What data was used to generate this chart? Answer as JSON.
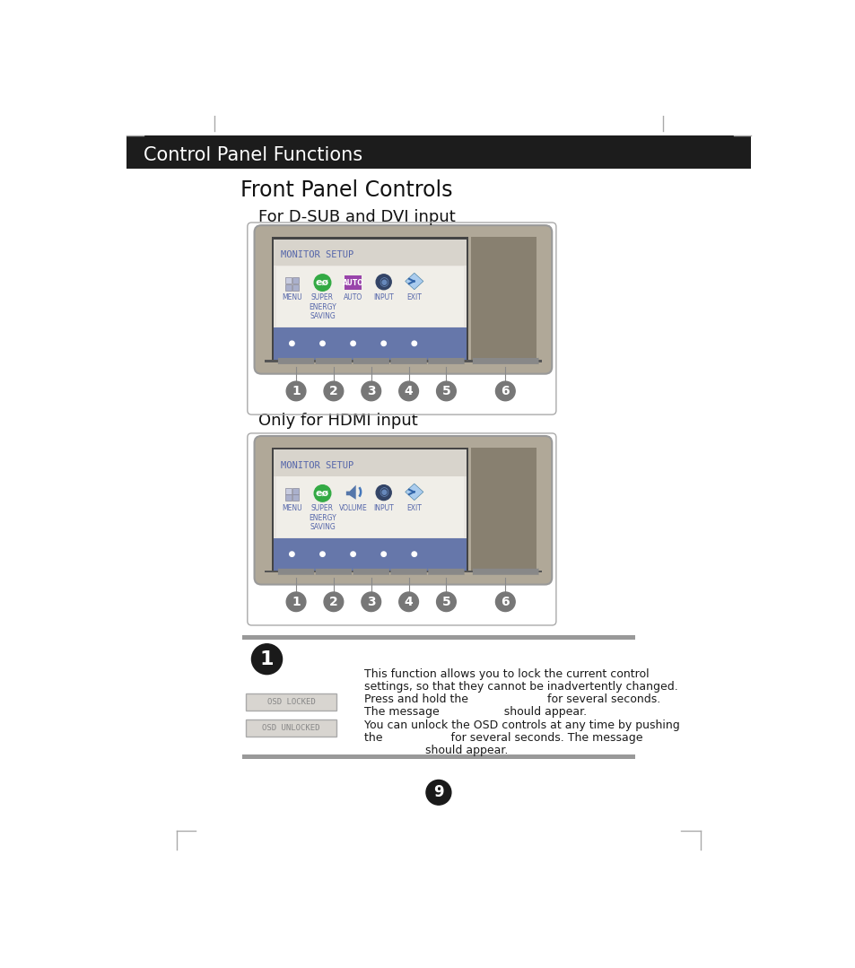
{
  "bg_color": "#ffffff",
  "header_bar_color": "#1c1c1c",
  "header_text": "Control Panel Functions",
  "header_text_color": "#ffffff",
  "title1": "Front Panel Controls",
  "subtitle1": "For D-SUB and DVI input",
  "subtitle2": "Only for HDMI input",
  "monitor_setup_text": "MONITOR SETUP",
  "osd_locked_text": "OSD LOCKED",
  "osd_unlocked_text": "OSD UNLOCKED",
  "desc_line1": "This function allows you to lock the current control",
  "desc_line2": "settings, so that they cannot be inadvertently changed.",
  "desc_line3": "Press and hold the                      for several seconds.",
  "desc_line4": "The message                  should appear.",
  "desc_line5": "You can unlock the OSD controls at any time by pushing",
  "desc_line6": "the                   for several seconds. The message",
  "desc_line7": "                 should appear.",
  "page_number": "9",
  "monitor_outer_color": "#b0a898",
  "monitor_dark_bezel": "#555555",
  "monitor_right_panel": "#888070",
  "screen_light_bg": "#e8e5e0",
  "screen_header_bg": "#d8d4cc",
  "osd_header_text_color": "#5566aa",
  "osd_blue_bar": "#6677aa",
  "icon_grid_bg": "#aaaacc",
  "icon_eco_bg": "#33aa44",
  "icon_auto_bg": "#9944aa",
  "icon_input_color": "#4477bb",
  "icon_exit_color": "#5588cc",
  "numbered_circle_color": "#777777",
  "separator_color": "#aaaaaa",
  "thick_bar_color": "#999999",
  "corner_mark_color": "#aaaaaa",
  "osd_box_bg": "#d8d5d0",
  "osd_box_border": "#aaaaaa",
  "osd_box_text": "#888888"
}
